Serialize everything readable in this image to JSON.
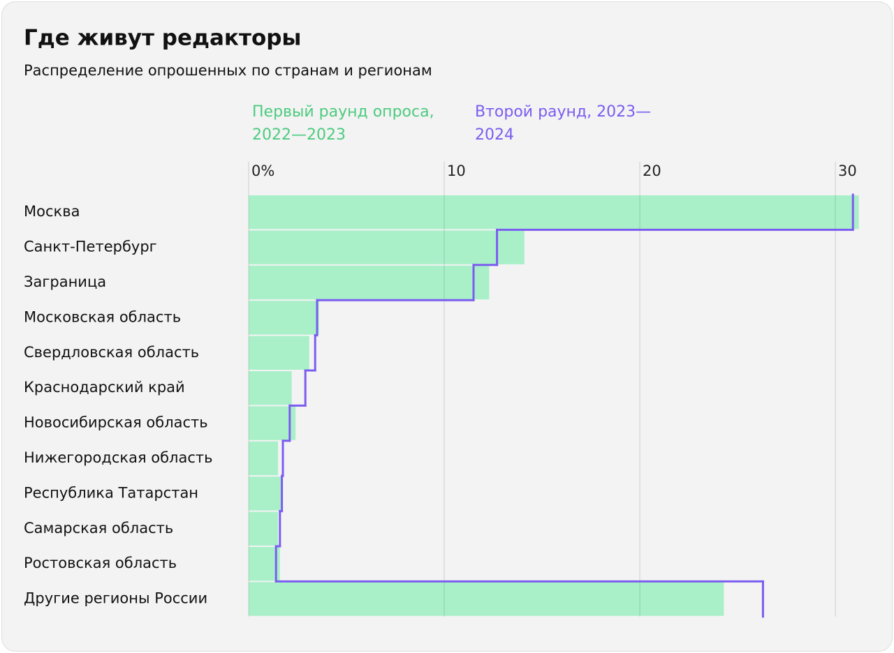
{
  "chart_data": {
    "type": "bar-step",
    "title": "Где живут редакторы",
    "subtitle": "Распределение опрошенных по странам и регионам",
    "categories": [
      "Москва",
      "Санкт-Петербург",
      "Заграница",
      "Московская область",
      "Свердловская область",
      "Краснодарский край",
      "Новосибирская область",
      "Нижегородская область",
      "Республика Татарстан",
      "Самарская область",
      "Ростовская область",
      "Другие регионы России"
    ],
    "series": [
      {
        "name": "Первый раунд опроса, 2022—2023",
        "color": "#a9f0c9",
        "values": [
          31.2,
          14.1,
          12.3,
          3.6,
          3.1,
          2.2,
          2.4,
          1.5,
          1.7,
          1.5,
          1.6,
          24.3
        ]
      },
      {
        "name": "Второй раунд, 2023—2024",
        "color": "#7b5cf0",
        "values": [
          30.9,
          12.7,
          11.5,
          3.5,
          3.4,
          2.9,
          2.1,
          1.75,
          1.7,
          1.6,
          1.4,
          26.3
        ]
      }
    ],
    "xlim": [
      0,
      32
    ],
    "xticks": [
      {
        "value": 0,
        "label": "0%"
      },
      10,
      20,
      30
    ],
    "grid": true
  }
}
